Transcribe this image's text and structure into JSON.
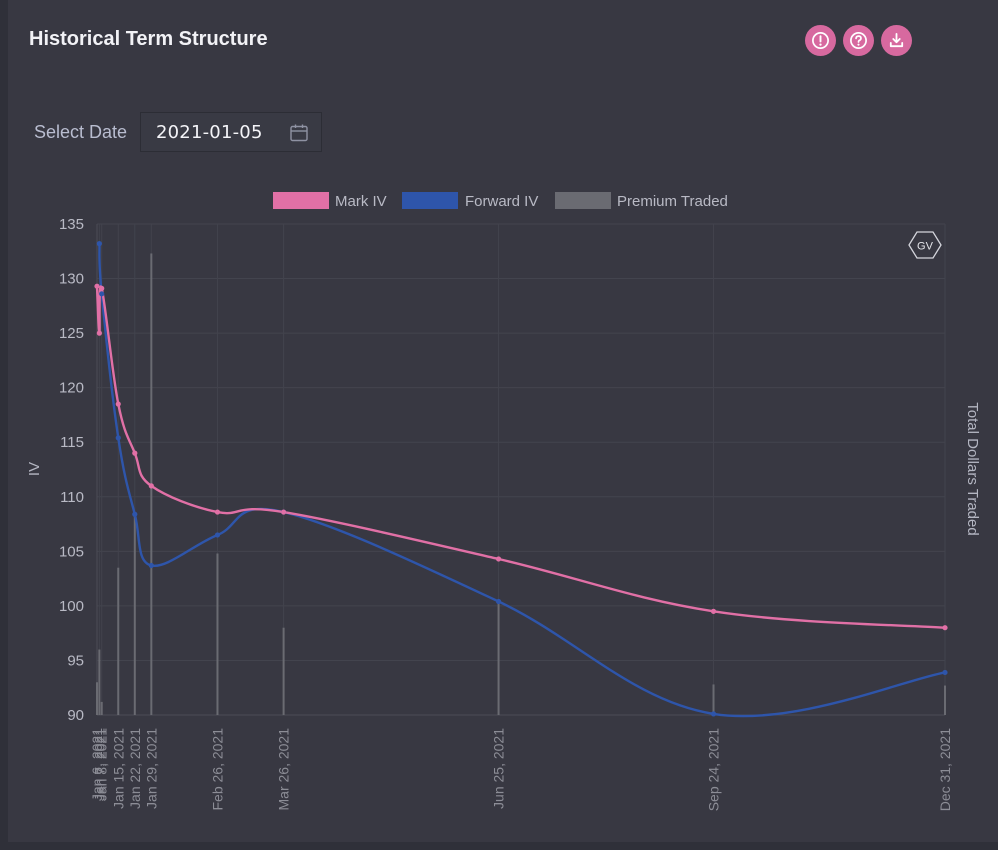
{
  "header": {
    "title": "Historical Term Structure"
  },
  "toolbar": {
    "icons": [
      "info-icon",
      "help-icon",
      "download-icon"
    ],
    "accent": "#d7699f"
  },
  "date_picker": {
    "label": "Select Date",
    "value": "2021-01-05"
  },
  "watermark": {
    "text": "GV"
  },
  "chart_data": {
    "type": "line",
    "title": "",
    "ylabel": "IV",
    "y2label": "Total Dollars Traded",
    "ylim": [
      90,
      135
    ],
    "yticks": [
      90,
      95,
      100,
      105,
      110,
      115,
      120,
      125,
      130,
      135
    ],
    "legend_position": "top-center",
    "x_tick_labels": [
      "Jan 6, 2021",
      "Jan 7, 2021",
      "Jan 8, 2021",
      "Jan 15, 2021",
      "Jan 22, 2021",
      "Jan 29, 2021",
      "Feb 26, 2021",
      "Mar 26, 2021",
      "Jun 25, 2021",
      "Sep 24, 2021",
      "Dec 31, 2021"
    ],
    "x_days": [
      0,
      1,
      2,
      9,
      16,
      23,
      51,
      79,
      170,
      261,
      359
    ],
    "series": [
      {
        "name": "Mark IV",
        "type": "line",
        "color": "#e170a6",
        "values": [
          129.3,
          125.0,
          129.1,
          118.5,
          114.0,
          111.0,
          108.6,
          108.6,
          104.3,
          99.5,
          98.0
        ]
      },
      {
        "name": "Forward IV",
        "type": "line",
        "color": "#2e55aa",
        "values": [
          null,
          133.2,
          128.6,
          115.4,
          108.4,
          103.7,
          106.5,
          108.6,
          100.4,
          90.1,
          93.9
        ]
      },
      {
        "name": "Premium Traded",
        "type": "bar",
        "axis": "right",
        "color": "#6a6b72",
        "values": [
          3.0,
          6.0,
          1.2,
          13.5,
          18.6,
          42.3,
          14.8,
          8.0,
          10.2,
          2.8,
          2.7
        ]
      }
    ]
  }
}
